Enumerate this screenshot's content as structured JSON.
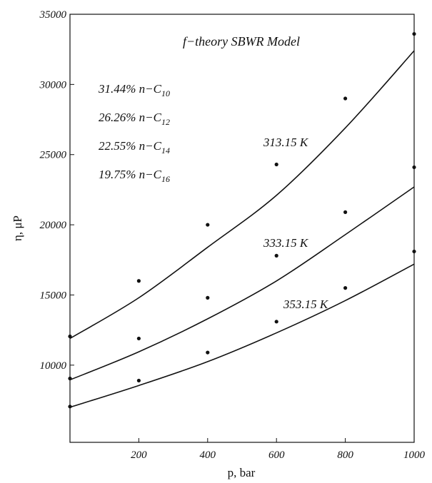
{
  "chart_data": {
    "type": "scatter",
    "title": "f−theory SBWR Model",
    "xlabel": "p, bar",
    "ylabel": "η, μP",
    "xlim": [
      0,
      1000
    ],
    "ylim": [
      4500,
      35000
    ],
    "xticks": [
      200,
      400,
      600,
      800,
      1000
    ],
    "yticks": [
      10000,
      15000,
      20000,
      25000,
      30000,
      35000
    ],
    "grid": false,
    "composition": [
      {
        "pct": "31.44%",
        "comp": "n−C",
        "sub": "10"
      },
      {
        "pct": "26.26%",
        "comp": "n−C",
        "sub": "12"
      },
      {
        "pct": "22.55%",
        "comp": "n−C",
        "sub": "14"
      },
      {
        "pct": "19.75%",
        "comp": "n−C",
        "sub": "16"
      }
    ],
    "series": [
      {
        "name": "313.15 K",
        "points": [
          [
            0,
            12050
          ],
          [
            200,
            16000
          ],
          [
            400,
            20000
          ],
          [
            600,
            24300
          ],
          [
            800,
            29000
          ],
          [
            1000,
            33600
          ]
        ],
        "curve": [
          [
            0,
            11900
          ],
          [
            200,
            14800
          ],
          [
            400,
            18400
          ],
          [
            600,
            22100
          ],
          [
            800,
            26900
          ],
          [
            1000,
            32400
          ]
        ]
      },
      {
        "name": "333.15 K",
        "points": [
          [
            0,
            9050
          ],
          [
            200,
            11900
          ],
          [
            400,
            14800
          ],
          [
            600,
            17800
          ],
          [
            800,
            20900
          ],
          [
            1000,
            24100
          ]
        ],
        "curve": [
          [
            0,
            8950
          ],
          [
            200,
            10950
          ],
          [
            400,
            13300
          ],
          [
            600,
            16000
          ],
          [
            800,
            19300
          ],
          [
            1000,
            22700
          ]
        ]
      },
      {
        "name": "353.15 K",
        "points": [
          [
            0,
            7050
          ],
          [
            200,
            8900
          ],
          [
            400,
            10900
          ],
          [
            600,
            13100
          ],
          [
            800,
            15500
          ],
          [
            1000,
            18100
          ]
        ],
        "curve": [
          [
            0,
            7000
          ],
          [
            200,
            8550
          ],
          [
            400,
            10250
          ],
          [
            600,
            12300
          ],
          [
            800,
            14600
          ],
          [
            1000,
            17200
          ]
        ]
      }
    ]
  }
}
